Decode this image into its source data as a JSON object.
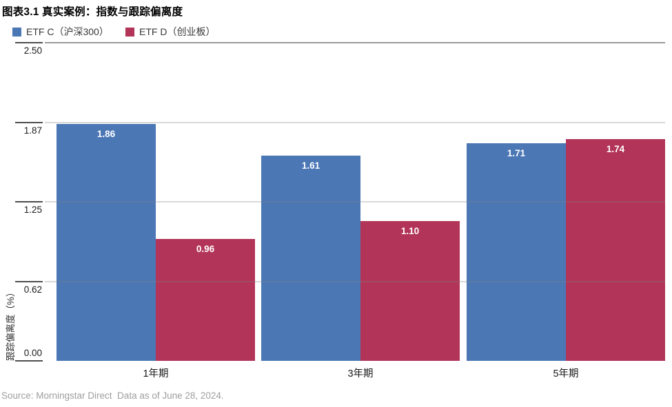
{
  "title": "图表3.1 真实案例：指数与跟踪偏离度",
  "legend": {
    "items": [
      {
        "label": "ETF C（沪深300）",
        "color": "#4b77b5"
      },
      {
        "label": "ETF D（创业板）",
        "color": "#b23458"
      }
    ]
  },
  "source": "Source: Morningstar Direct  Data as of June 28, 2024.",
  "colors": {
    "series_blue": "#4b77b5",
    "series_red": "#b23458",
    "plot_top_border": "#9a9a9a",
    "tick": "#4d4d4d",
    "gridline": "rgba(128,128,128,0.30)"
  },
  "chart_data": {
    "type": "bar",
    "categories": [
      "1年期",
      "3年期",
      "5年期"
    ],
    "series": [
      {
        "name": "ETF C（沪深300）",
        "color": "#4b77b5",
        "values": [
          1.86,
          1.61,
          1.71
        ]
      },
      {
        "name": "ETF D（创业板）",
        "color": "#b23458",
        "values": [
          0.96,
          1.1,
          1.74
        ]
      }
    ],
    "title": "图表3.1 真实案例：指数与跟踪偏离度",
    "xlabel": "",
    "ylabel": "跟踪偏离度（%）",
    "ylim": [
      0,
      2.5
    ],
    "yticks": [
      0.0,
      0.62,
      1.25,
      1.87,
      2.5
    ],
    "ytick_labels": [
      "0.00",
      "0.62",
      "1.25",
      "1.87",
      "2.50"
    ],
    "grid": true,
    "gridlines_over_bars": true,
    "value_labels": "inside-top",
    "legend_position": "top-left"
  }
}
